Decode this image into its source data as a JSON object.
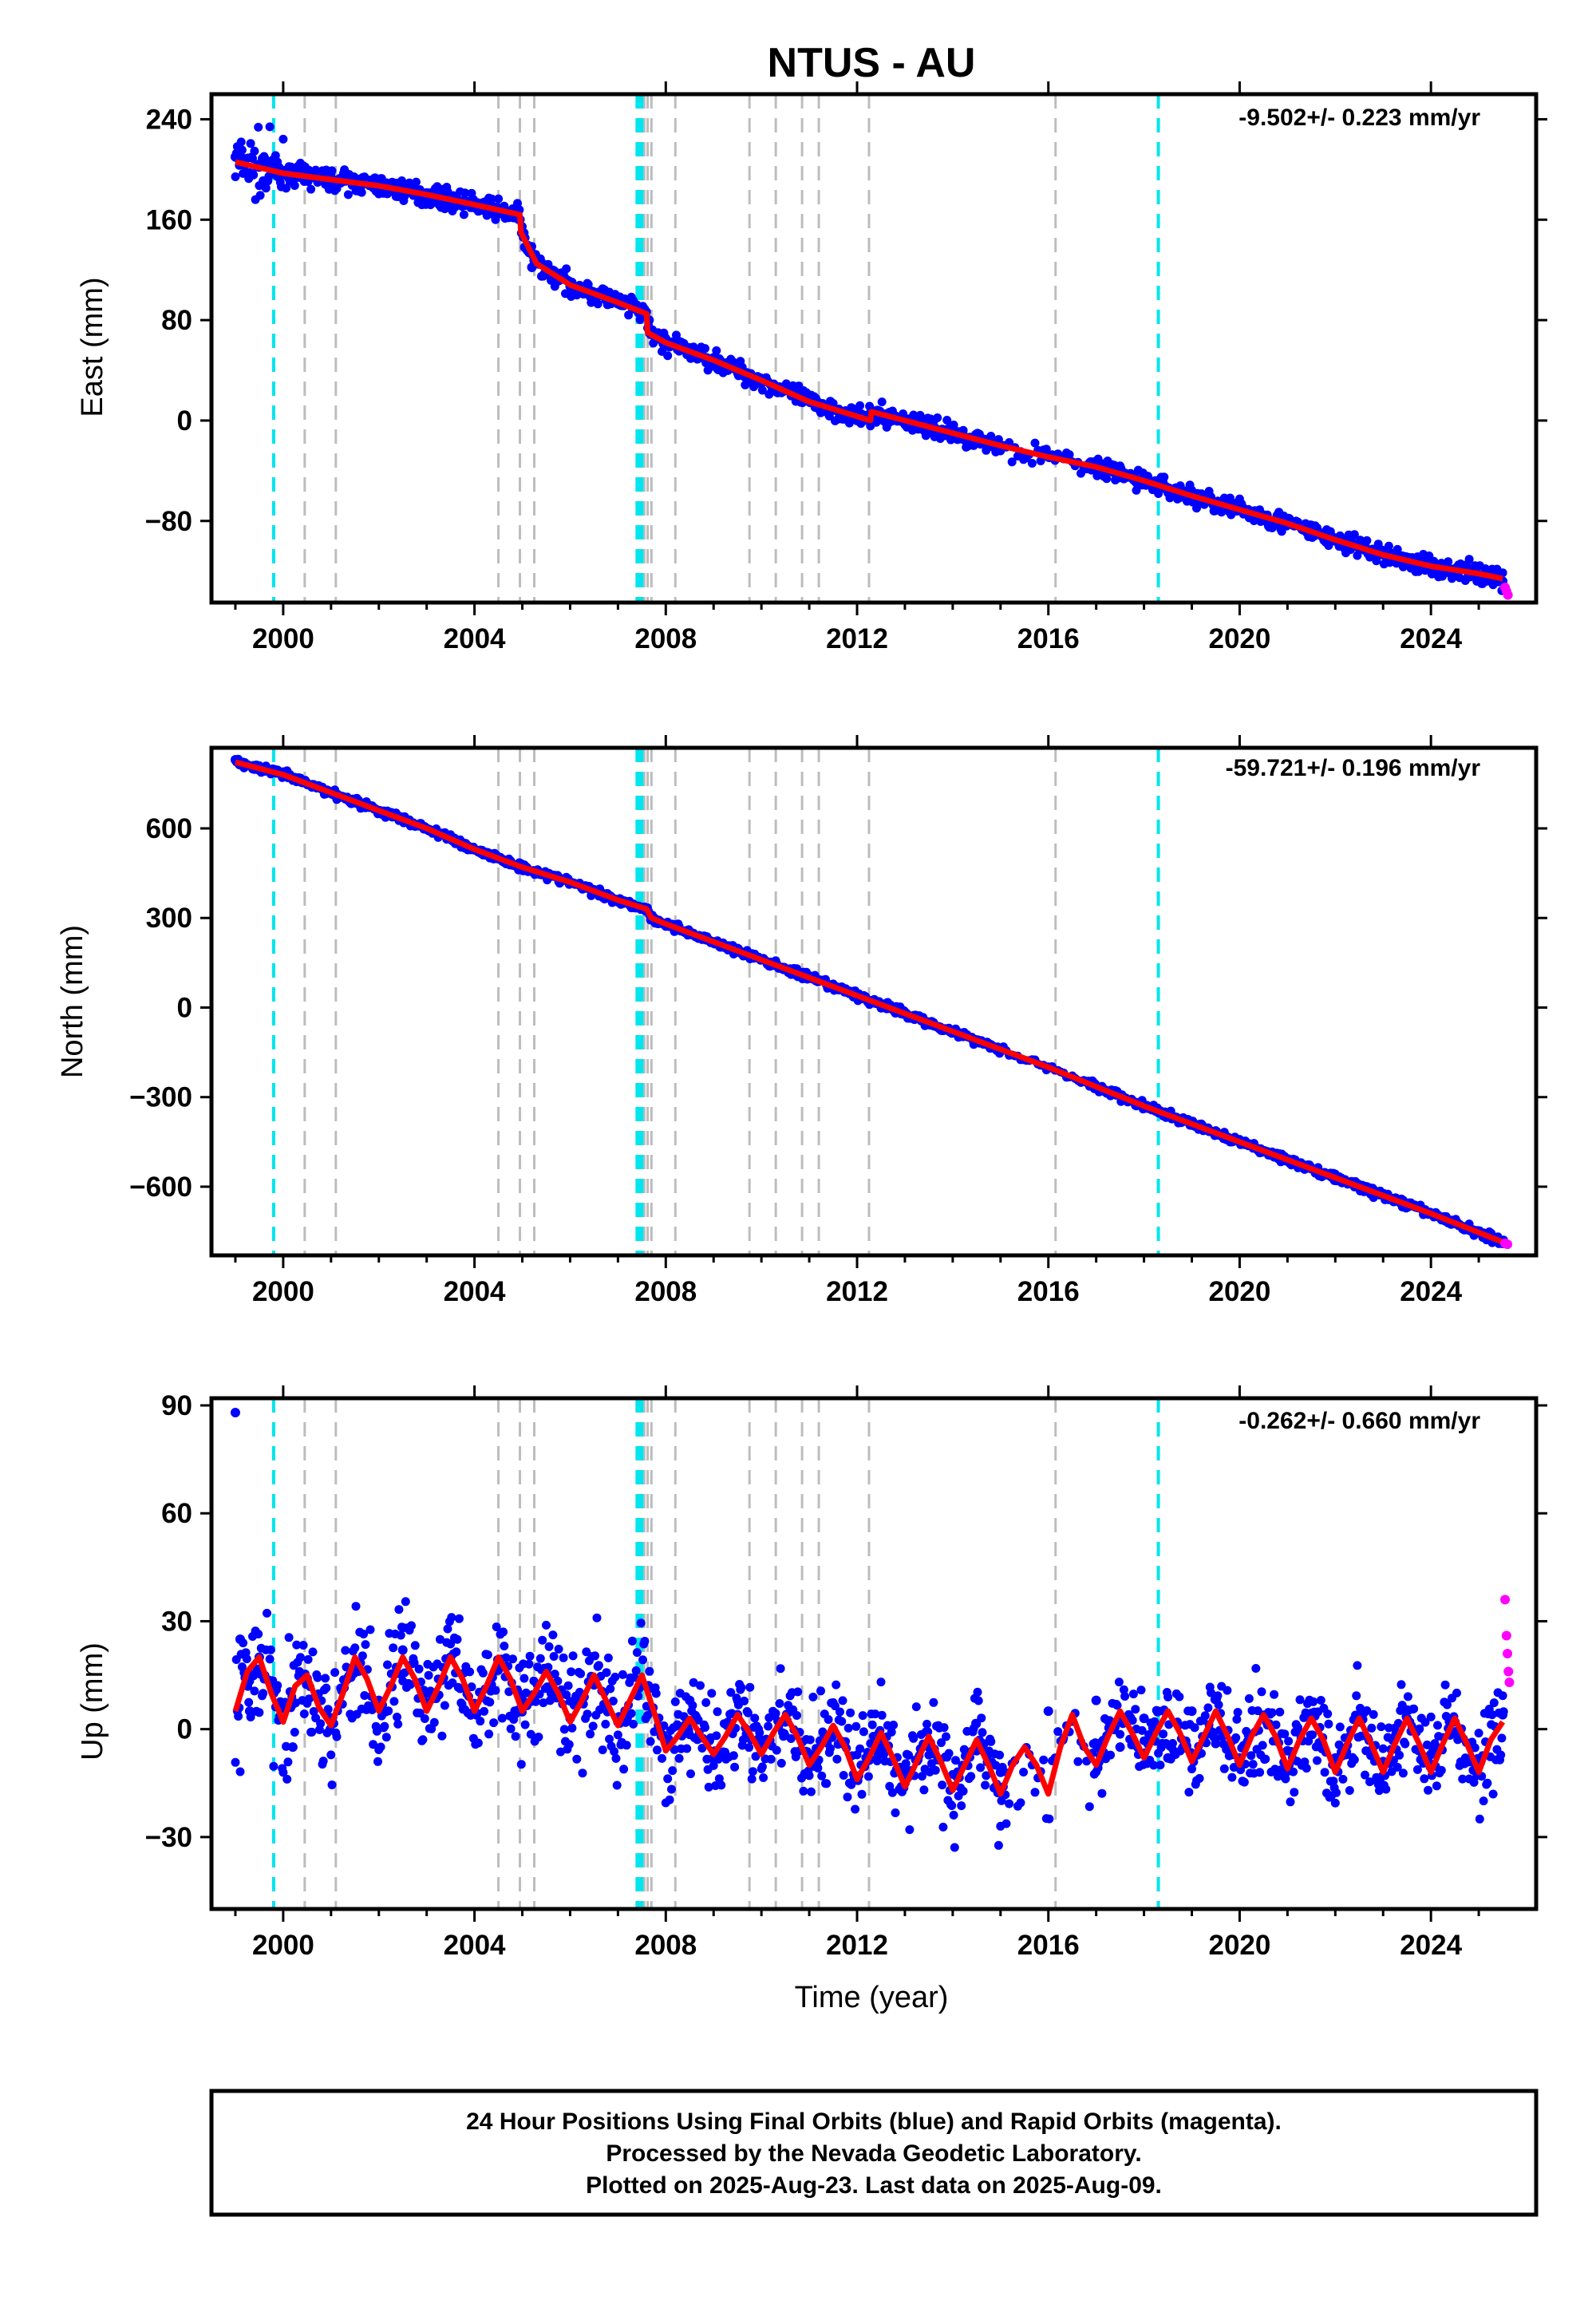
{
  "title": "NTUS - AU",
  "xlabel": "Time (year)",
  "footer": {
    "line1": "24 Hour Positions Using Final Orbits (blue) and Rapid Orbits (magenta).",
    "line2": "Processed by the Nevada Geodetic Laboratory.",
    "line3": "Plotted on 2025-Aug-23. Last data on 2025-Aug-09."
  },
  "colors": {
    "final_orbits": "#0000ff",
    "rapid_orbits": "#ff00ff",
    "model": "#ff0000",
    "event_cyan": "#00e5ee",
    "event_gray": "#bdbdbd"
  },
  "chart_data": [
    {
      "type": "scatter",
      "ylabel": "East (mm)",
      "rate_label": "-9.502+/- 0.223 mm/yr",
      "xlim": [
        1998.5,
        2026.2
      ],
      "ylim": [
        -145,
        260
      ],
      "xticks": [
        2000,
        2004,
        2008,
        2012,
        2016,
        2020,
        2024
      ],
      "yticks": [
        240,
        160,
        80,
        0,
        -80
      ],
      "ytick_labels": [
        "240",
        "160",
        "80",
        "0",
        "−80"
      ],
      "series": [
        {
          "kind": "final_orbits",
          "x": [
            1999.0,
            1999.5,
            2000.0,
            2001.0,
            2002.0,
            2003.0,
            2004.0,
            2004.9,
            2005.05,
            2005.2,
            2006.0,
            2007.0,
            2007.55,
            2007.65,
            2008.0,
            2009.0,
            2010.0,
            2011.0,
            2012.0,
            2012.25,
            2012.3,
            2013.0,
            2014.0,
            2015.0,
            2016.0,
            2017.0,
            2018.0,
            2019.0,
            2020.0,
            2021.0,
            2022.0,
            2023.0,
            2024.0,
            2025.0,
            2025.5
          ],
          "y": [
            210,
            202,
            196,
            191,
            186,
            181,
            173,
            165,
            138,
            122,
            107,
            93,
            86,
            80,
            65,
            50,
            32,
            15,
            0,
            0,
            7,
            0,
            -10,
            -20,
            -29,
            -37,
            -48,
            -60,
            -70,
            -82,
            -95,
            -107,
            -116,
            -123,
            -128
          ]
        },
        {
          "kind": "model",
          "x": [
            1999.0,
            2000.0,
            2001.0,
            2002.0,
            2003.0,
            2004.0,
            2004.95,
            2004.97,
            2005.3,
            2006.0,
            2007.0,
            2007.6,
            2007.62,
            2008.0,
            2009.0,
            2010.0,
            2011.0,
            2012.28,
            2012.3,
            2013.0,
            2014.0,
            2015.0,
            2016.0,
            2017.0,
            2018.0,
            2019.0,
            2020.0,
            2021.0,
            2022.0,
            2023.0,
            2024.0,
            2025.0,
            2025.5
          ],
          "y": [
            206,
            197,
            192,
            187,
            180,
            172,
            164,
            150,
            125,
            108,
            94,
            85,
            70,
            62,
            48,
            32,
            15,
            0,
            7,
            0,
            -10,
            -20,
            -29,
            -37,
            -48,
            -60,
            -71,
            -82,
            -95,
            -107,
            -116,
            -122,
            -126
          ]
        },
        {
          "kind": "rapid_orbits",
          "x": [
            2025.55,
            2025.58,
            2025.61
          ],
          "y": [
            -133,
            -136,
            -139
          ]
        }
      ]
    },
    {
      "type": "scatter",
      "ylabel": "North (mm)",
      "rate_label": "-59.721+/- 0.196 mm/yr",
      "xlim": [
        1998.5,
        2026.2
      ],
      "ylim": [
        -830,
        870
      ],
      "xticks": [
        2000,
        2004,
        2008,
        2012,
        2016,
        2020,
        2024
      ],
      "yticks": [
        600,
        300,
        0,
        -300,
        -600
      ],
      "ytick_labels": [
        "600",
        "300",
        "0",
        "−300",
        "−600"
      ],
      "series": [
        {
          "kind": "final_orbits",
          "x": [
            1999.0,
            2000.0,
            2001.0,
            2002.0,
            2003.0,
            2004.0,
            2005.0,
            2006.0,
            2007.0,
            2007.6,
            2007.7,
            2008.0,
            2010.0,
            2012.0,
            2014.0,
            2016.0,
            2018.0,
            2020.0,
            2022.0,
            2024.0,
            2025.5
          ],
          "y": [
            830,
            780,
            720,
            660,
            600,
            530,
            470,
            420,
            360,
            330,
            300,
            280,
            160,
            40,
            -80,
            -200,
            -330,
            -450,
            -570,
            -690,
            -790
          ]
        },
        {
          "kind": "model",
          "x": [
            1999.0,
            2000.0,
            2001.0,
            2002.0,
            2003.0,
            2004.0,
            2005.0,
            2006.0,
            2007.0,
            2007.6,
            2007.7,
            2008.0,
            2010.0,
            2012.0,
            2014.0,
            2016.0,
            2018.0,
            2020.0,
            2022.0,
            2024.0,
            2025.5
          ],
          "y": [
            822,
            780,
            720,
            660,
            600,
            530,
            470,
            420,
            360,
            330,
            300,
            280,
            160,
            40,
            -80,
            -200,
            -330,
            -450,
            -570,
            -690,
            -785
          ]
        },
        {
          "kind": "rapid_orbits",
          "x": [
            2025.55,
            2025.6
          ],
          "y": [
            -790,
            -793
          ]
        }
      ]
    },
    {
      "type": "scatter",
      "ylabel": "Up (mm)",
      "rate_label": "-0.262+/- 0.660 mm/yr",
      "xlim": [
        1998.5,
        2026.2
      ],
      "ylim": [
        -50,
        92
      ],
      "xticks": [
        2000,
        2004,
        2008,
        2012,
        2016,
        2020,
        2024
      ],
      "yticks": [
        90,
        60,
        30,
        0,
        -30
      ],
      "ytick_labels": [
        "90",
        "60",
        "30",
        "0",
        "−30"
      ],
      "series": [
        {
          "kind": "final_orbits",
          "x": [
            1999.0,
            1999.1,
            1999.3,
            1999.5,
            1999.8,
            2000.2,
            2000.5,
            2001.0,
            2001.5,
            2002.0,
            2002.5,
            2003.0,
            2003.5,
            2004.0,
            2004.5,
            2005.0,
            2005.5,
            2006.0,
            2006.5,
            2007.0,
            2007.5,
            2008.0,
            2008.5,
            2009.0,
            2009.5,
            2010.0,
            2010.5,
            2011.0,
            2011.5,
            2012.0,
            2012.5,
            2013.0,
            2013.5,
            2014.0,
            2014.5,
            2015.0,
            2016.0,
            2016.3,
            2017.0,
            2017.5,
            2018.0,
            2018.5,
            2019.0,
            2019.5,
            2020.0,
            2020.5,
            2021.0,
            2021.5,
            2022.0,
            2022.5,
            2023.0,
            2023.5,
            2024.0,
            2024.5,
            2025.0,
            2025.5
          ],
          "y": [
            88,
            25,
            5,
            20,
            10,
            -5,
            14,
            3,
            18,
            8,
            22,
            10,
            20,
            5,
            18,
            8,
            16,
            3,
            14,
            2,
            13,
            -3,
            8,
            -8,
            4,
            -5,
            2,
            -8,
            0,
            -14,
            -5,
            -15,
            -5,
            -16,
            -6,
            -12,
            5,
            -3,
            8,
            -5,
            3,
            -8,
            5,
            -4,
            -8,
            3,
            -6,
            3,
            -8,
            2,
            -9,
            3,
            -7,
            2,
            -9,
            4
          ]
        },
        {
          "kind": "model",
          "x": [
            1999.0,
            1999.25,
            1999.5,
            1999.75,
            2000.0,
            2000.25,
            2000.5,
            2000.75,
            2001.0,
            2001.25,
            2001.5,
            2001.75,
            2002.0,
            2002.25,
            2002.5,
            2002.75,
            2003.0,
            2003.25,
            2003.5,
            2003.75,
            2004.0,
            2004.25,
            2004.5,
            2004.75,
            2005.0,
            2005.25,
            2005.5,
            2005.75,
            2006.0,
            2006.25,
            2006.5,
            2006.75,
            2007.0,
            2007.25,
            2007.5,
            2007.75,
            2008.0,
            2008.25,
            2008.5,
            2008.75,
            2009.0,
            2009.25,
            2009.5,
            2009.75,
            2010.0,
            2010.25,
            2010.5,
            2010.75,
            2011.0,
            2011.25,
            2011.5,
            2011.75,
            2012.0,
            2012.25,
            2012.5,
            2012.75,
            2013.0,
            2013.25,
            2013.5,
            2013.75,
            2014.0,
            2014.25,
            2014.5,
            2014.75,
            2015.0,
            2015.25,
            2015.5,
            2015.75,
            2016.0,
            2016.25,
            2016.5,
            2016.75,
            2017.0,
            2017.25,
            2017.5,
            2017.75,
            2018.0,
            2018.25,
            2018.5,
            2018.75,
            2019.0,
            2019.25,
            2019.5,
            2019.75,
            2020.0,
            2020.25,
            2020.5,
            2020.75,
            2021.0,
            2021.25,
            2021.5,
            2021.75,
            2022.0,
            2022.25,
            2022.5,
            2022.75,
            2023.0,
            2023.25,
            2023.5,
            2023.75,
            2024.0,
            2024.25,
            2024.5,
            2024.75,
            2025.0,
            2025.25,
            2025.5
          ],
          "y": [
            5,
            16,
            20,
            10,
            2,
            12,
            15,
            6,
            1,
            10,
            20,
            14,
            5,
            12,
            20,
            14,
            5,
            12,
            20,
            14,
            5,
            12,
            20,
            14,
            5,
            10,
            16,
            10,
            2,
            8,
            15,
            8,
            1,
            8,
            15,
            5,
            -6,
            -2,
            3,
            -2,
            -7,
            -2,
            4,
            -1,
            -7,
            -1,
            4,
            -2,
            -10,
            -5,
            1,
            -5,
            -14,
            -8,
            -1,
            -8,
            -16,
            -9,
            -2,
            -9,
            -17,
            -10,
            -3,
            -10,
            -18,
            -10,
            -5,
            -10,
            -18,
            -5,
            4,
            -5,
            -10,
            -2,
            5,
            -1,
            -8,
            -1,
            5,
            -1,
            -9,
            -2,
            5,
            -2,
            -10,
            -2,
            4,
            -2,
            -11,
            -3,
            3,
            -3,
            -12,
            -4,
            3,
            -4,
            -12,
            -4,
            3,
            -4,
            -12,
            -4,
            3,
            -4,
            -12,
            -3,
            2
          ]
        },
        {
          "kind": "rapid_orbits",
          "x": [
            2025.55,
            2025.58,
            2025.6,
            2025.62,
            2025.64
          ],
          "y": [
            36,
            26,
            21,
            16,
            13
          ]
        }
      ]
    }
  ],
  "event_lines": {
    "cyan": [
      1999.8,
      2007.4,
      2007.45,
      2007.5,
      2018.3
    ],
    "gray": [
      2000.45,
      2001.1,
      2004.5,
      2004.95,
      2005.25,
      2007.55,
      2007.62,
      2007.7,
      2008.2,
      2009.75,
      2010.3,
      2010.85,
      2011.2,
      2012.25,
      2016.15
    ]
  }
}
